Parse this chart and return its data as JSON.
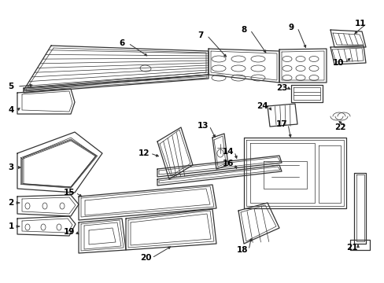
{
  "bg_color": "#ffffff",
  "line_color": "#333333",
  "label_color": "#000000",
  "lw_main": 0.9,
  "lw_thin": 0.5,
  "lw_thick": 1.2,
  "label_fontsize": 7.5
}
